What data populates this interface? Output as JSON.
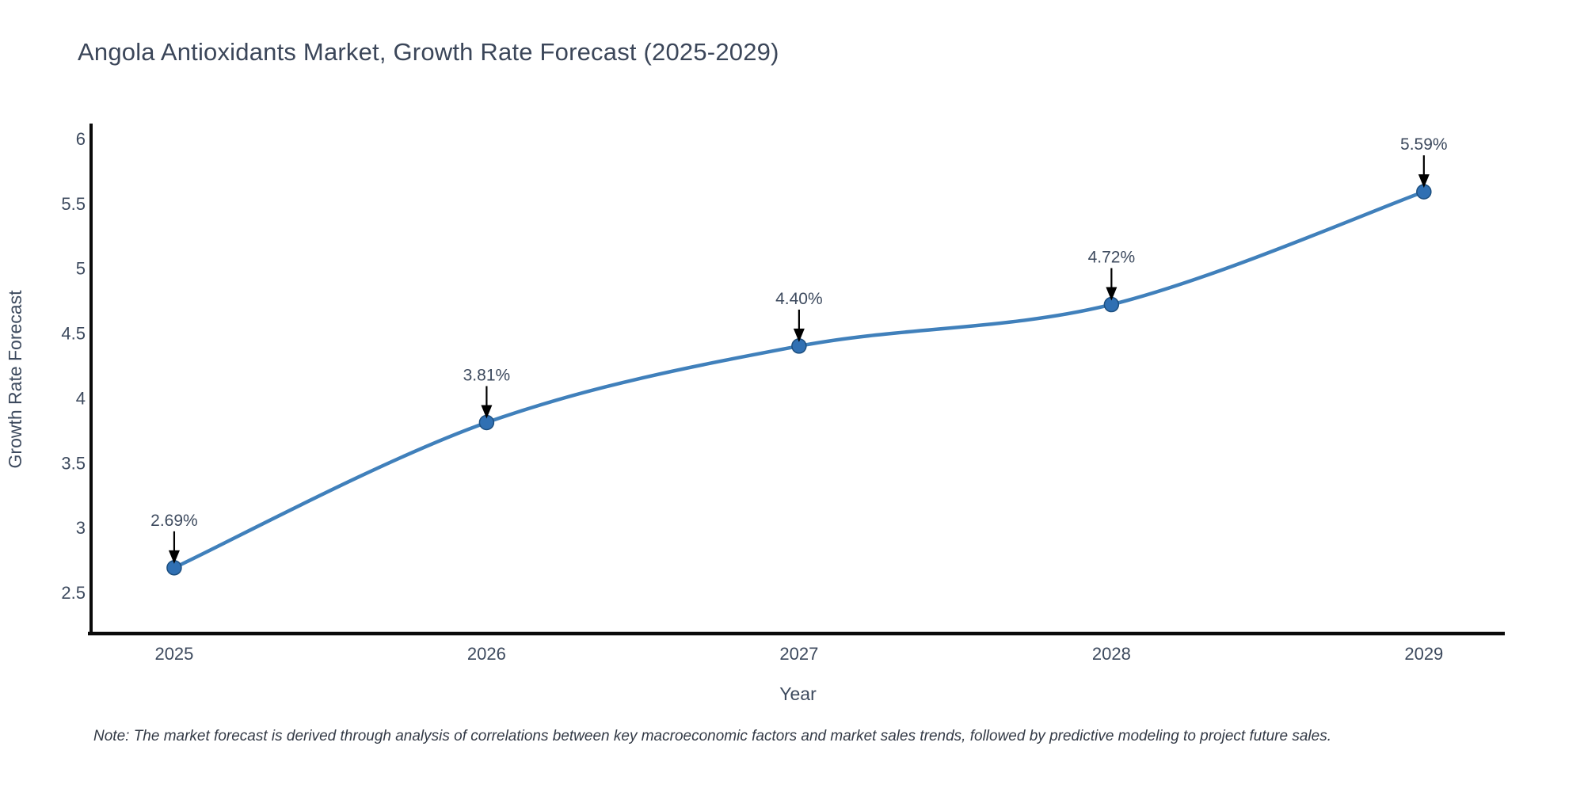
{
  "title": "Angola Antioxidants Market, Growth Rate Forecast (2025-2029)",
  "note": "Note: The market forecast is derived through analysis of correlations between key macroeconomic factors and market sales trends, followed by predictive modeling to project future sales.",
  "chart_data": {
    "type": "line",
    "title": "Angola Antioxidants Market, Growth Rate Forecast (2025-2029)",
    "xlabel": "Year",
    "ylabel": "Growth Rate Forecast",
    "x": [
      2025,
      2026,
      2027,
      2028,
      2029
    ],
    "values": [
      2.69,
      3.81,
      4.4,
      4.72,
      5.59
    ],
    "labels": [
      "2.69%",
      "3.81%",
      "4.40%",
      "4.72%",
      "5.59%"
    ],
    "xtick_labels": [
      "2025",
      "2026",
      "2027",
      "2028",
      "2029"
    ],
    "yticks": [
      2.5,
      3,
      3.5,
      4,
      4.5,
      5,
      5.5,
      6
    ],
    "ytick_labels": [
      "2.5",
      "3",
      "3.5",
      "4",
      "4.5",
      "5",
      "5.5",
      "6"
    ],
    "xlim": [
      2024.734,
      2029.259
    ],
    "ylim": [
      2.182,
      6.104
    ],
    "line_shape": "spline",
    "grid": false,
    "legend": "none",
    "colors": {
      "line": "#4080bb",
      "marker": "#3070b3",
      "marker_edge": "#1d4f7f",
      "axis": "#0a0a0a",
      "text": "#3d4a5e",
      "annotation_arrow": "#000000"
    }
  }
}
